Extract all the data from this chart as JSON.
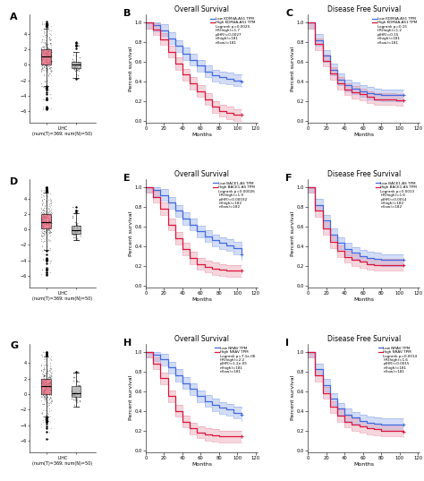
{
  "rows": [
    {
      "gene": "KDM4A-AS1",
      "box_xlabel": "LIHC\n(num(T)=369; num(N)=50)",
      "tumor_color": "#e8637a",
      "normal_color": "#a0a0a0",
      "os_title": "Overall Survival",
      "os_legend": [
        "Low KDM4A-AS1 TPM",
        "High KDM4A-AS1 TPM"
      ],
      "os_stats": [
        "Logrank p=0.0025",
        "HR(high)=1.7",
        "p(HR)=0.0027",
        "n(high)=181",
        "n(low)=181"
      ],
      "dfs_title": "Disease Free Survival",
      "dfs_legend": [
        "Low KDM4A-AS1 TPM",
        "High KDM4A-AS1 TPM"
      ],
      "dfs_stats": [
        "Logrank p=0.15",
        "HR(high)=1.2",
        "p(HR)=0.15",
        "n(high)=181",
        "n(low)=181"
      ],
      "panel_labels": [
        "A",
        "B",
        "C"
      ],
      "os_blue": [
        1.0,
        0.97,
        0.92,
        0.84,
        0.76,
        0.68,
        0.62,
        0.56,
        0.5,
        0.46,
        0.44,
        0.43,
        0.41,
        0.4
      ],
      "os_red": [
        1.0,
        0.93,
        0.83,
        0.7,
        0.58,
        0.47,
        0.38,
        0.3,
        0.22,
        0.14,
        0.1,
        0.08,
        0.06,
        0.06
      ],
      "dfs_blue": [
        1.0,
        0.82,
        0.66,
        0.52,
        0.42,
        0.36,
        0.33,
        0.3,
        0.28,
        0.27,
        0.26,
        0.26,
        0.26,
        0.26
      ],
      "dfs_red": [
        1.0,
        0.78,
        0.61,
        0.48,
        0.38,
        0.32,
        0.29,
        0.27,
        0.24,
        0.22,
        0.22,
        0.22,
        0.21,
        0.21
      ]
    },
    {
      "gene": "BACE1-AS",
      "box_xlabel": "LIHC\n(num(T)=369; num(N)=50)",
      "tumor_color": "#e8637a",
      "normal_color": "#a0a0a0",
      "os_title": "Overall Survival",
      "os_legend": [
        "Low BACE1-AS TPM",
        "High BACE1-AS TPM"
      ],
      "os_stats": [
        "Logrank p=0.00026",
        "HR(high)=1.9",
        "p(HR)=0.00032",
        "n(high)=182",
        "n(low)=182"
      ],
      "dfs_title": "Disease Free Survival",
      "dfs_legend": [
        "Low BACE1-AS TPM",
        "High BACE1-AS TPM"
      ],
      "dfs_stats": [
        "Logrank p=0.0013",
        "HR(high)=1.6",
        "p(HR)=0.0014",
        "n(high)=182",
        "n(low)=182"
      ],
      "panel_labels": [
        "D",
        "E",
        "F"
      ],
      "os_blue": [
        1.0,
        0.97,
        0.92,
        0.84,
        0.76,
        0.68,
        0.62,
        0.55,
        0.5,
        0.46,
        0.43,
        0.41,
        0.38,
        0.32
      ],
      "os_red": [
        1.0,
        0.9,
        0.78,
        0.62,
        0.48,
        0.37,
        0.28,
        0.22,
        0.19,
        0.17,
        0.16,
        0.15,
        0.15,
        0.15
      ],
      "dfs_blue": [
        1.0,
        0.82,
        0.66,
        0.52,
        0.43,
        0.37,
        0.33,
        0.3,
        0.28,
        0.27,
        0.26,
        0.26,
        0.26,
        0.26
      ],
      "dfs_red": [
        1.0,
        0.76,
        0.58,
        0.44,
        0.35,
        0.29,
        0.26,
        0.24,
        0.22,
        0.21,
        0.21,
        0.21,
        0.21,
        0.21
      ]
    },
    {
      "gene": "NRAV",
      "box_xlabel": "LIHC\n(num(T)=369; num(N)=50)",
      "tumor_color": "#e8637a",
      "normal_color": "#a0a0a0",
      "os_title": "Overall Survival",
      "os_legend": [
        "Low NRAV TPM",
        "High NRAV TPM"
      ],
      "os_stats": [
        "Logrank p=7.1e-06",
        "HR(high)=2.2",
        "p(HR)=1.2e-05",
        "n(high)=181",
        "n(low)=181"
      ],
      "dfs_title": "Disease Free Survival",
      "dfs_legend": [
        "Low NRAV TPM",
        "High NRAV TPM"
      ],
      "dfs_stats": [
        "Logrank p=0.0014",
        "HR(high)=1.6",
        "p(HR)=0.0015",
        "n(high)=181",
        "n(low)=181"
      ],
      "panel_labels": [
        "G",
        "H",
        "I"
      ],
      "os_blue": [
        1.0,
        0.97,
        0.92,
        0.84,
        0.76,
        0.68,
        0.62,
        0.55,
        0.5,
        0.46,
        0.43,
        0.41,
        0.38,
        0.36
      ],
      "os_red": [
        1.0,
        0.88,
        0.73,
        0.55,
        0.4,
        0.29,
        0.22,
        0.18,
        0.16,
        0.15,
        0.14,
        0.14,
        0.14,
        0.14
      ],
      "dfs_blue": [
        1.0,
        0.82,
        0.66,
        0.52,
        0.42,
        0.36,
        0.33,
        0.3,
        0.28,
        0.27,
        0.26,
        0.26,
        0.26,
        0.26
      ],
      "dfs_red": [
        1.0,
        0.76,
        0.58,
        0.44,
        0.35,
        0.29,
        0.26,
        0.24,
        0.22,
        0.21,
        0.2,
        0.2,
        0.2,
        0.19
      ]
    }
  ],
  "km_t": [
    0,
    8,
    16,
    24,
    32,
    40,
    48,
    56,
    64,
    72,
    80,
    88,
    96,
    104,
    120
  ],
  "km_blue_color": "#4169e1",
  "km_red_color": "#dc143c",
  "km_blue_ci": "#8fa8e8",
  "km_red_ci": "#e89aaa",
  "background_color": "#ffffff",
  "months_ticks": [
    0,
    20,
    40,
    60,
    80,
    100,
    120
  ],
  "survival_yticks": [
    0.0,
    0.2,
    0.4,
    0.6,
    0.8,
    1.0
  ]
}
